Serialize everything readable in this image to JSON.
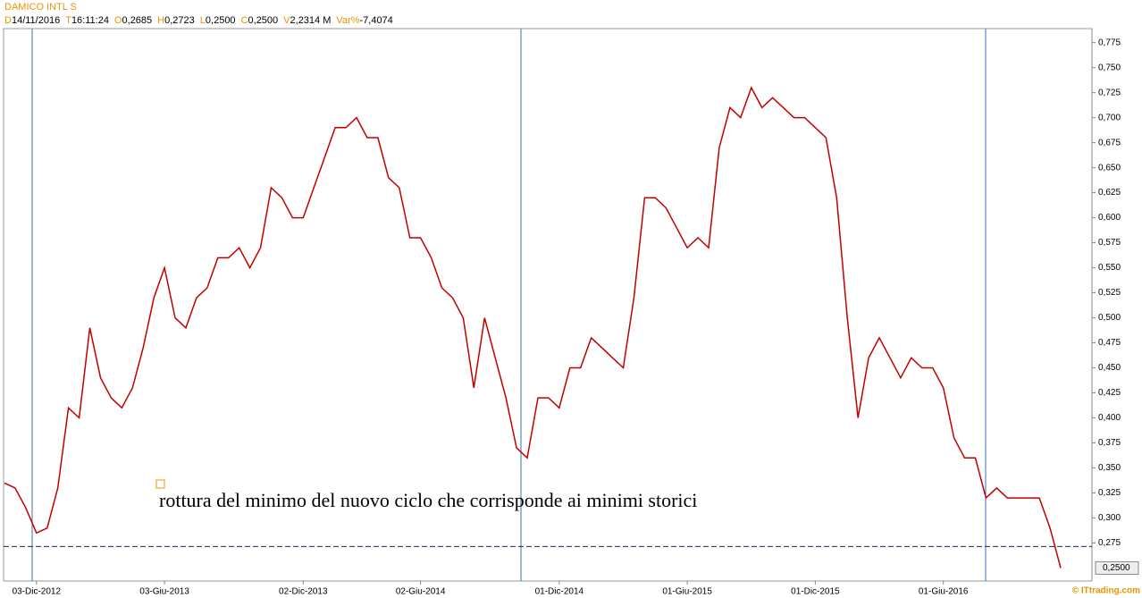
{
  "chart_data": {
    "type": "line",
    "title": "DAMICO INTL S",
    "header_fields": [
      {
        "key": "D",
        "value": "14/11/2016"
      },
      {
        "key": "T",
        "value": "16:11:24"
      },
      {
        "key": "O",
        "value": "0,2685"
      },
      {
        "key": "H",
        "value": "0,2723"
      },
      {
        "key": "L",
        "value": "0,2500"
      },
      {
        "key": "C",
        "value": "0,2500"
      },
      {
        "key": "V",
        "value": "2,2314 M"
      },
      {
        "key": "Var%",
        "value": "-7,4074"
      }
    ],
    "annotation": "rottura del minimo del nuovo ciclo che corrisponde ai minimi storici",
    "footer": "© ITtrading.com",
    "categories": [
      null,
      null,
      null,
      "03-Dic-2012",
      null,
      null,
      null,
      null,
      null,
      null,
      null,
      null,
      null,
      null,
      null,
      "03-Giu-2013",
      null,
      null,
      null,
      null,
      null,
      null,
      null,
      null,
      null,
      null,
      null,
      null,
      "02-Dic-2013",
      null,
      null,
      null,
      null,
      null,
      null,
      null,
      null,
      null,
      null,
      "02-Giu-2014",
      null,
      null,
      null,
      null,
      null,
      null,
      null,
      null,
      null,
      null,
      null,
      null,
      "01-Dic-2014",
      null,
      null,
      null,
      null,
      null,
      null,
      null,
      null,
      null,
      null,
      null,
      "01-Giu-2015",
      null,
      null,
      null,
      null,
      null,
      null,
      null,
      null,
      null,
      null,
      null,
      "01-Dic-2015",
      null,
      null,
      null,
      null,
      null,
      null,
      null,
      null,
      null,
      null,
      null,
      "01-Giu-2016",
      null,
      null,
      null,
      null,
      null,
      null,
      null,
      null,
      null,
      null,
      null
    ],
    "series": [
      {
        "name": "DAMICO INTL S",
        "color": "#c00000",
        "values": [
          0.335,
          0.33,
          0.31,
          0.285,
          0.29,
          0.33,
          0.41,
          0.4,
          0.49,
          0.44,
          0.42,
          0.41,
          0.43,
          0.47,
          0.52,
          0.55,
          0.5,
          0.49,
          0.52,
          0.53,
          0.56,
          0.56,
          0.57,
          0.55,
          0.57,
          0.63,
          0.62,
          0.6,
          0.6,
          0.63,
          0.66,
          0.69,
          0.69,
          0.7,
          0.68,
          0.68,
          0.64,
          0.63,
          0.58,
          0.58,
          0.56,
          0.53,
          0.52,
          0.5,
          0.43,
          0.5,
          0.46,
          0.42,
          0.37,
          0.36,
          0.42,
          0.42,
          0.41,
          0.45,
          0.45,
          0.48,
          0.47,
          0.46,
          0.45,
          0.52,
          0.62,
          0.62,
          0.61,
          0.59,
          0.57,
          0.58,
          0.57,
          0.67,
          0.71,
          0.7,
          0.73,
          0.71,
          0.72,
          0.71,
          0.7,
          0.7,
          0.69,
          0.68,
          0.62,
          0.5,
          0.4,
          0.46,
          0.48,
          0.46,
          0.44,
          0.46,
          0.45,
          0.45,
          0.43,
          0.38,
          0.36,
          0.36,
          0.32,
          0.33,
          0.32,
          0.32,
          0.32,
          0.32,
          0.29,
          0.25
        ]
      }
    ],
    "last_price": {
      "value": 0.25,
      "label": "0,2500"
    },
    "support_level": 0.2715,
    "ylim": [
      0.237,
      0.789
    ],
    "yticks": [
      {
        "value": 0.275,
        "label": "0,275"
      },
      {
        "value": 0.3,
        "label": "0,300"
      },
      {
        "value": 0.325,
        "label": "0,325"
      },
      {
        "value": 0.35,
        "label": "0,350"
      },
      {
        "value": 0.375,
        "label": "0,375"
      },
      {
        "value": 0.4,
        "label": "0,400"
      },
      {
        "value": 0.425,
        "label": "0,425"
      },
      {
        "value": 0.45,
        "label": "0,450"
      },
      {
        "value": 0.475,
        "label": "0,475"
      },
      {
        "value": 0.5,
        "label": "0,500"
      },
      {
        "value": 0.525,
        "label": "0,525"
      },
      {
        "value": 0.55,
        "label": "0,550"
      },
      {
        "value": 0.575,
        "label": "0,575"
      },
      {
        "value": 0.6,
        "label": "0,600"
      },
      {
        "value": 0.625,
        "label": "0,625"
      },
      {
        "value": 0.65,
        "label": "0,650"
      },
      {
        "value": 0.675,
        "label": "0,675"
      },
      {
        "value": 0.7,
        "label": "0,700"
      },
      {
        "value": 0.725,
        "label": "0,725"
      },
      {
        "value": 0.75,
        "label": "0,750"
      },
      {
        "value": 0.775,
        "label": "0,775"
      }
    ]
  }
}
